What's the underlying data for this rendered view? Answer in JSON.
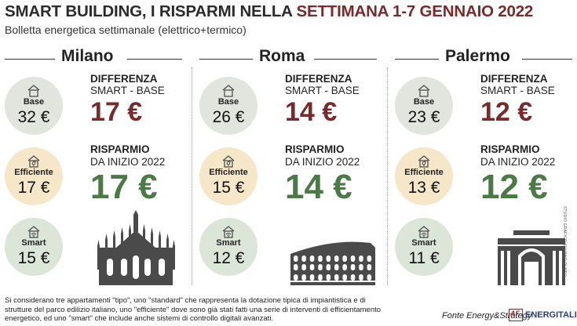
{
  "header": {
    "title_part1": "SMART BUILDING, I RISPARMI NELLA ",
    "title_part2": "SETTIMANA 1-7 GENNAIO 2022",
    "subtitle": "Bolletta energetica settimanale (elettrico+termico)"
  },
  "labels": {
    "base": "Base",
    "efficient": "Efficiente",
    "smart": "Smart",
    "diff_line1": "DIFFERENZA",
    "diff_line2": "SMART - BASE",
    "saving_line1": "RISPARMIO",
    "saving_line2": "DA INIZIO 2022"
  },
  "icons": {
    "base": "house-icon",
    "efficient": "house-leaf-icon",
    "smart": "house-wifi-icon"
  },
  "colors": {
    "title_accent": "#7a2a2a",
    "difference": "#7a2a2a",
    "saving": "#4b7a46",
    "base_circle": "#e1e5de",
    "efficient_circle": "#f6e7c9",
    "smart_circle": "#dbe6d8",
    "brand": "#2a3f7a"
  },
  "cities": [
    {
      "name": "Milano",
      "base": "32 €",
      "efficient": "17 €",
      "smart": "15 €",
      "difference": "17 €",
      "saving": "17 €",
      "landmark": "milan-cathedral-icon"
    },
    {
      "name": "Roma",
      "base": "26 €",
      "efficient": "15 €",
      "smart": "12 €",
      "difference": "14 €",
      "saving": "14 €",
      "landmark": "colosseum-icon"
    },
    {
      "name": "Palermo",
      "base": "23 €",
      "efficient": "13 €",
      "smart": "11 €",
      "difference": "12 €",
      "saving": "12 €",
      "landmark": "politeama-theatre-icon"
    }
  ],
  "chart_data": {
    "type": "table",
    "title": "SMART BUILDING, I RISPARMI NELLA SETTIMANA 1-7 GENNAIO 2022",
    "subtitle": "Bolletta energetica settimanale (elettrico+termico)",
    "categories": [
      "Milano",
      "Roma",
      "Palermo"
    ],
    "unit": "€",
    "series": [
      {
        "name": "Base",
        "values": [
          32,
          26,
          23
        ]
      },
      {
        "name": "Efficiente",
        "values": [
          17,
          15,
          13
        ]
      },
      {
        "name": "Smart",
        "values": [
          15,
          12,
          11
        ]
      },
      {
        "name": "DIFFERENZA SMART - BASE",
        "values": [
          17,
          14,
          12
        ]
      },
      {
        "name": "RISPARMIO DA INIZIO 2022",
        "values": [
          17,
          14,
          12
        ]
      }
    ]
  },
  "footer": {
    "footnote": "Si considerano tre appartamenti \"tipo\", uno \"standard\" che rappresenta la dotazione tipica di impiantistica e di strutture del parco edilizio italiano, uno \"efficiente\" dove sono già stati fatti una serie di interventi di efficientamento energetico, ed uno \"smart\" che include anche sistemi di controllo digitali avanzati.",
    "source": "Fonte Energy&Strategy",
    "logo_mark": "AF",
    "logo_text": "ENERGITALIA",
    "credit": "STUDIO GRAFICO SILVANO DI MEO"
  }
}
